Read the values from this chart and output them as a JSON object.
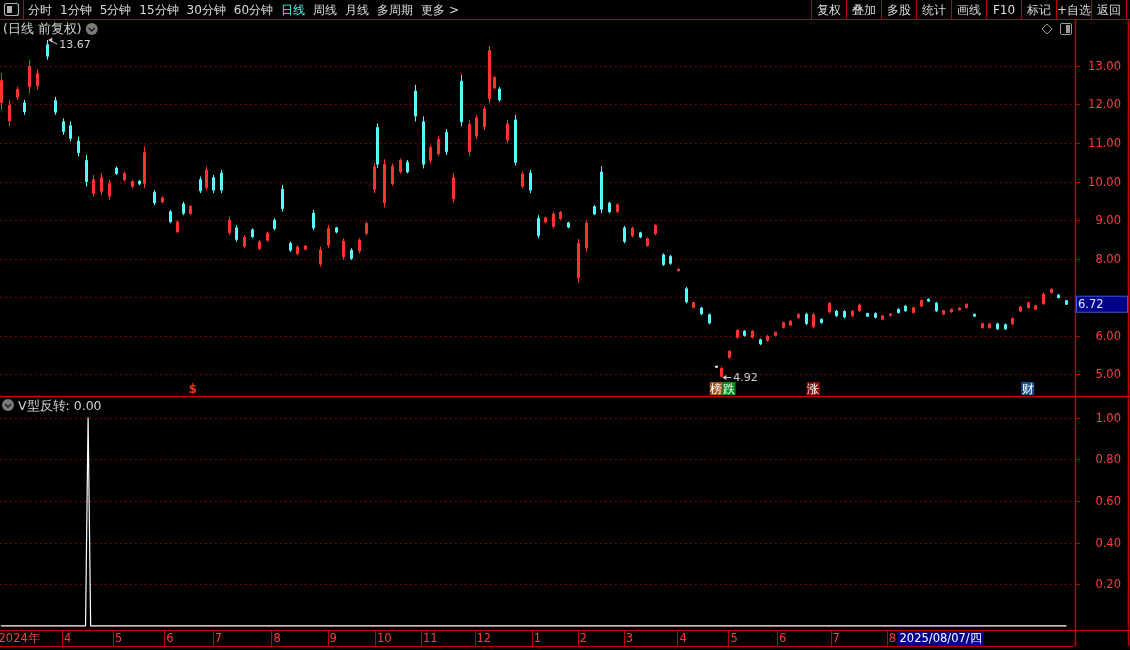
{
  "chart_data": [
    {
      "type": "candlestick",
      "title": "(日线 前复权)",
      "categories": [
        null,
        null,
        null,
        null,
        null,
        null,
        null,
        null,
        null,
        null,
        null,
        null,
        null,
        null,
        null,
        null,
        null,
        null,
        null,
        null,
        null,
        null,
        null,
        null,
        null,
        null,
        null,
        null,
        null,
        null,
        null,
        null,
        null,
        null,
        null,
        null,
        null,
        null,
        null,
        null,
        null,
        null,
        null,
        null,
        null,
        null,
        null,
        null,
        null,
        null,
        null,
        null,
        null,
        null,
        null,
        null,
        null,
        null,
        null,
        null,
        null,
        null,
        null,
        null,
        null,
        null,
        null,
        null,
        null,
        null,
        null,
        null,
        null,
        null,
        null,
        null,
        null,
        null,
        null,
        null,
        null,
        null,
        null,
        null,
        null,
        null,
        null,
        null,
        null,
        null,
        null,
        null,
        null,
        null,
        null,
        null,
        null,
        null,
        null,
        null,
        null,
        null,
        null,
        null,
        null,
        null,
        null,
        null,
        null,
        null,
        null,
        null,
        null,
        null,
        null,
        null,
        null,
        null,
        null,
        null,
        null,
        null,
        null,
        null,
        null,
        null,
        null,
        null,
        null,
        null,
        null,
        null,
        null,
        null,
        null,
        null,
        null,
        null,
        null,
        null,
        null,
        null,
        null,
        null,
        null,
        null,
        null,
        null,
        null,
        null,
        null,
        null,
        null,
        null,
        null,
        null,
        null,
        null,
        null,
        null,
        null,
        null,
        null,
        null,
        null,
        null,
        null,
        null,
        null,
        null,
        null,
        null,
        null,
        null,
        null,
        null,
        null,
        null,
        null,
        null,
        null,
        null,
        null,
        null,
        null,
        null,
        null,
        null,
        null,
        null,
        null,
        null,
        null,
        null,
        null,
        null,
        null,
        null,
        null,
        null,
        null,
        null,
        null,
        null,
        null,
        null,
        null,
        null,
        null,
        null,
        null,
        null,
        null,
        null,
        null,
        null,
        null,
        null,
        null,
        null,
        null,
        null,
        null,
        null,
        null,
        null,
        null,
        null,
        null,
        null,
        null,
        null,
        null,
        null,
        null,
        null,
        null,
        null,
        null,
        null,
        null,
        null,
        null,
        null,
        null,
        null,
        null,
        null,
        null,
        null,
        null,
        null,
        null,
        null,
        null,
        null,
        null,
        null,
        null,
        null,
        null,
        null,
        null,
        null,
        null,
        null,
        null,
        null,
        null,
        null,
        null,
        null,
        null,
        null,
        null,
        null,
        null,
        null,
        null,
        null,
        null,
        null,
        null,
        null,
        null,
        null,
        null,
        null,
        null,
        null,
        null,
        null,
        null,
        null,
        null,
        null,
        null,
        null,
        null,
        null,
        null,
        null,
        null,
        null,
        null,
        null,
        null,
        null,
        null,
        null,
        null,
        null,
        null,
        null,
        null,
        null,
        null,
        null,
        null,
        null,
        null,
        null,
        null,
        null,
        null,
        null,
        null,
        null,
        null,
        null,
        null,
        null,
        null,
        null,
        null,
        null,
        null,
        null,
        null,
        null,
        null,
        null,
        null,
        null,
        null,
        null,
        null,
        null,
        null,
        null,
        null,
        null,
        null,
        null,
        null,
        null,
        null,
        null,
        null,
        null,
        null,
        null,
        null,
        null,
        null,
        null,
        null,
        null,
        null,
        null,
        null,
        null,
        null,
        null,
        null,
        null,
        null,
        null,
        null,
        null,
        null,
        null,
        null,
        null,
        null,
        null,
        null,
        null,
        null,
        null,
        null,
        null,
        null,
        null,
        null,
        null,
        null,
        null,
        null,
        null,
        null,
        null,
        null,
        null,
        null,
        null,
        null,
        null,
        null,
        null,
        null,
        null,
        null,
        null,
        null,
        null,
        null,
        null,
        null,
        null,
        null
      ],
      "ohlc": [
        [
          12.05,
          12.81,
          11.86,
          12.62
        ],
        null,
        null,
        [
          11.57,
          12.12,
          11.43,
          11.98
        ],
        null,
        null,
        [
          12.19,
          12.46,
          12.12,
          12.39
        ],
        null,
        null,
        [
          12.04,
          12.12,
          11.73,
          11.81
        ],
        null,
        [
          12.46,
          13.16,
          12.29,
          12.99
        ],
        null,
        null,
        [
          12.48,
          12.9,
          12.38,
          12.8
        ],
        null,
        null,
        null,
        [
          13.55,
          13.67,
          13.16,
          13.25
        ],
        null,
        null,
        [
          12.1,
          12.2,
          11.73,
          11.8
        ],
        null,
        null,
        [
          11.55,
          11.64,
          11.21,
          11.3
        ],
        null,
        null,
        [
          11.45,
          11.56,
          11.04,
          11.12
        ],
        null,
        null,
        [
          11.05,
          11.17,
          10.65,
          10.75
        ],
        null,
        null,
        [
          10.55,
          10.69,
          9.87,
          10.0
        ],
        null,
        null,
        [
          9.7,
          10.17,
          9.61,
          10.05
        ],
        null,
        null,
        [
          9.75,
          10.21,
          9.65,
          10.1
        ],
        null,
        null,
        [
          9.62,
          10.04,
          9.52,
          9.95
        ],
        null,
        null,
        [
          10.35,
          10.39,
          10.17,
          10.21
        ],
        null,
        null,
        [
          10.05,
          10.26,
          10.0,
          10.21
        ],
        null,
        null,
        [
          9.87,
          10.04,
          9.83,
          10.0
        ],
        null,
        null,
        [
          10.01,
          10.04,
          9.91,
          9.94
        ],
        null,
        [
          9.95,
          10.91,
          9.83,
          10.75
        ],
        null,
        null,
        null,
        [
          9.72,
          9.78,
          9.39,
          9.45
        ],
        null,
        null,
        [
          9.47,
          9.61,
          9.44,
          9.58
        ],
        null,
        null,
        [
          9.22,
          9.26,
          8.92,
          8.96
        ],
        null,
        null,
        [
          8.7,
          9.0,
          8.66,
          8.95
        ],
        null,
        [
          9.42,
          9.48,
          9.13,
          9.18
        ],
        null,
        null,
        [
          9.17,
          9.39,
          9.13,
          9.35
        ],
        null,
        null,
        null,
        [
          10.05,
          10.13,
          9.7,
          9.76
        ],
        null,
        [
          9.85,
          10.39,
          9.78,
          10.3
        ],
        null,
        null,
        [
          10.1,
          10.17,
          9.7,
          9.78
        ],
        null,
        null,
        [
          10.22,
          10.3,
          9.7,
          9.78
        ],
        null,
        null,
        [
          8.68,
          9.09,
          8.61,
          9.0
        ],
        null,
        null,
        [
          8.8,
          8.87,
          8.44,
          8.5
        ],
        null,
        null,
        [
          8.32,
          8.61,
          8.27,
          8.55
        ],
        null,
        null,
        [
          8.75,
          8.79,
          8.53,
          8.57
        ],
        null,
        null,
        [
          8.26,
          8.48,
          8.22,
          8.44
        ],
        null,
        null,
        [
          8.48,
          8.7,
          8.44,
          8.66
        ],
        null,
        null,
        [
          9.0,
          9.05,
          8.74,
          8.78
        ],
        null,
        null,
        [
          9.8,
          9.91,
          9.22,
          9.3
        ],
        null,
        null,
        [
          8.4,
          8.44,
          8.18,
          8.22
        ],
        null,
        null,
        [
          8.13,
          8.35,
          8.09,
          8.3
        ],
        null,
        null,
        [
          8.24,
          8.35,
          8.22,
          8.33
        ],
        null,
        null,
        [
          9.18,
          9.26,
          8.74,
          8.8
        ],
        null,
        null,
        [
          7.86,
          8.31,
          7.79,
          8.22
        ],
        null,
        null,
        [
          8.35,
          8.87,
          8.27,
          8.78
        ],
        null,
        null,
        [
          8.8,
          8.83,
          8.66,
          8.69
        ],
        null,
        null,
        [
          8.05,
          8.53,
          7.97,
          8.45
        ],
        null,
        null,
        [
          8.22,
          8.27,
          7.97,
          8.01
        ],
        null,
        null,
        [
          8.2,
          8.53,
          8.14,
          8.48
        ],
        null,
        null,
        [
          8.66,
          8.96,
          8.61,
          8.91
        ],
        null,
        null,
        [
          9.8,
          10.47,
          9.7,
          10.38
        ],
        [
          11.4,
          11.51,
          10.35,
          10.45
        ],
        null,
        null,
        [
          9.45,
          10.58,
          9.33,
          10.45
        ],
        null,
        null,
        [
          9.95,
          10.47,
          9.89,
          10.4
        ],
        null,
        null,
        [
          10.26,
          10.6,
          10.21,
          10.55
        ],
        null,
        null,
        [
          10.5,
          10.56,
          10.21,
          10.25
        ],
        null,
        null,
        [
          12.35,
          12.51,
          11.56,
          11.7
        ],
        null,
        null,
        [
          11.55,
          11.69,
          10.34,
          10.45
        ],
        null,
        null,
        [
          10.55,
          10.95,
          10.47,
          10.88
        ],
        null,
        null,
        [
          10.72,
          11.18,
          10.66,
          11.1
        ],
        null,
        null,
        [
          11.28,
          11.36,
          10.69,
          10.78
        ],
        null,
        null,
        [
          9.55,
          10.21,
          9.46,
          10.1
        ],
        null,
        null,
        [
          12.6,
          12.77,
          11.43,
          11.55
        ],
        null,
        null,
        [
          10.78,
          11.6,
          10.66,
          11.48
        ],
        null,
        null,
        [
          11.18,
          11.73,
          11.1,
          11.65
        ],
        null,
        null,
        [
          11.42,
          11.96,
          11.34,
          11.88
        ],
        null,
        [
          12.15,
          13.52,
          12.03,
          13.4
        ],
        null,
        [
          12.43,
          12.74,
          12.39,
          12.7
        ],
        null,
        [
          12.4,
          12.45,
          12.07,
          12.12
        ],
        null,
        null,
        [
          11.08,
          11.6,
          10.99,
          11.5
        ],
        null,
        null,
        [
          11.6,
          11.73,
          10.41,
          10.5
        ],
        null,
        null,
        [
          9.88,
          10.26,
          9.83,
          10.2
        ],
        null,
        null,
        [
          10.22,
          10.3,
          9.7,
          9.78
        ],
        null,
        null,
        [
          9.05,
          9.13,
          8.53,
          8.6
        ],
        null,
        null,
        [
          8.95,
          9.09,
          8.92,
          9.06
        ],
        null,
        null,
        [
          8.84,
          9.22,
          8.79,
          9.16
        ],
        null,
        null,
        [
          9.04,
          9.24,
          9.0,
          9.2
        ],
        null,
        null,
        [
          8.93,
          8.96,
          8.79,
          8.82
        ],
        null,
        null,
        null,
        [
          7.5,
          8.51,
          7.38,
          8.4
        ],
        null,
        null,
        [
          8.28,
          9.0,
          8.18,
          8.92
        ],
        null,
        null,
        [
          9.35,
          9.39,
          9.13,
          9.16
        ],
        null,
        null,
        [
          10.25,
          10.4,
          9.18,
          9.28
        ],
        null,
        null,
        [
          9.44,
          9.48,
          9.18,
          9.22
        ],
        null,
        null,
        [
          9.22,
          9.44,
          9.18,
          9.4
        ],
        null,
        null,
        [
          8.8,
          8.85,
          8.4,
          8.45
        ],
        null,
        null,
        [
          8.59,
          8.83,
          8.55,
          8.79
        ],
        null,
        null,
        [
          8.67,
          8.7,
          8.53,
          8.56
        ],
        null,
        null,
        [
          8.34,
          8.55,
          8.31,
          8.52
        ],
        null,
        null,
        [
          8.65,
          8.9,
          8.61,
          8.86
        ],
        null,
        null,
        [
          8.1,
          8.14,
          7.81,
          7.85
        ],
        null,
        null,
        [
          8.06,
          8.1,
          7.84,
          7.88
        ],
        null,
        null,
        [
          7.69,
          7.75,
          7.67,
          7.73
        ],
        null,
        null,
        [
          7.22,
          7.27,
          6.84,
          6.88
        ],
        null,
        null,
        [
          6.74,
          6.88,
          6.71,
          6.86
        ],
        null,
        null,
        [
          6.72,
          6.75,
          6.54,
          6.57
        ],
        null,
        null,
        [
          6.55,
          6.58,
          6.3,
          6.33
        ],
        null,
        null,
        [
          5.2,
          5.2,
          5.2,
          5.2
        ],
        null,
        [
          4.95,
          5.2,
          4.92,
          5.15
        ],
        null,
        null,
        [
          5.44,
          5.63,
          5.41,
          5.6
        ],
        null,
        null,
        [
          5.96,
          6.17,
          5.93,
          6.14
        ],
        null,
        null,
        [
          6.12,
          6.15,
          5.98,
          6.01
        ],
        null,
        null,
        [
          5.96,
          6.15,
          5.93,
          6.12
        ],
        null,
        null,
        [
          5.9,
          5.93,
          5.76,
          5.79
        ],
        null,
        null,
        [
          5.88,
          6.02,
          5.85,
          5.99
        ],
        null,
        null,
        [
          6.01,
          6.11,
          5.99,
          6.09
        ],
        null,
        null,
        [
          6.22,
          6.37,
          6.19,
          6.34
        ],
        null,
        null,
        [
          6.28,
          6.41,
          6.25,
          6.38
        ],
        null,
        null,
        [
          6.47,
          6.58,
          6.45,
          6.56
        ],
        null,
        null,
        [
          6.56,
          6.6,
          6.28,
          6.32
        ],
        null,
        null,
        [
          6.24,
          6.6,
          6.19,
          6.55
        ],
        null,
        null,
        [
          6.43,
          6.45,
          6.32,
          6.34
        ],
        null,
        null,
        [
          6.62,
          6.88,
          6.58,
          6.84
        ],
        null,
        null,
        [
          6.64,
          6.67,
          6.49,
          6.52
        ],
        null,
        null,
        [
          6.63,
          6.67,
          6.45,
          6.49
        ],
        null,
        null,
        [
          6.52,
          6.67,
          6.49,
          6.64
        ],
        null,
        null,
        [
          6.65,
          6.84,
          6.62,
          6.8
        ],
        null,
        null,
        [
          6.58,
          6.6,
          6.49,
          6.51
        ],
        null,
        null,
        [
          6.58,
          6.61,
          6.45,
          6.48
        ],
        null,
        null,
        [
          6.43,
          6.54,
          6.41,
          6.52
        ],
        null,
        null,
        [
          6.52,
          6.58,
          6.51,
          6.57
        ],
        null,
        null,
        [
          6.69,
          6.71,
          6.58,
          6.6
        ],
        null,
        null,
        [
          6.77,
          6.8,
          6.62,
          6.65
        ],
        null,
        null,
        [
          6.6,
          6.75,
          6.58,
          6.73
        ],
        null,
        null,
        [
          6.77,
          6.94,
          6.75,
          6.92
        ],
        null,
        null,
        [
          6.95,
          6.97,
          6.88,
          6.9
        ],
        null,
        null,
        [
          6.85,
          6.88,
          6.62,
          6.65
        ],
        null,
        null,
        [
          6.56,
          6.67,
          6.54,
          6.65
        ],
        null,
        null,
        [
          6.62,
          6.71,
          6.6,
          6.69
        ],
        null,
        null,
        [
          6.67,
          6.74,
          6.65,
          6.72
        ],
        null,
        null,
        [
          6.73,
          6.84,
          6.71,
          6.82
        ],
        null,
        null,
        [
          6.56,
          6.58,
          6.49,
          6.51
        ],
        null,
        null,
        [
          6.21,
          6.34,
          6.19,
          6.32
        ],
        null,
        null,
        [
          6.21,
          6.34,
          6.19,
          6.31
        ],
        null,
        null,
        [
          6.31,
          6.34,
          6.15,
          6.18
        ],
        null,
        null,
        [
          6.29,
          6.32,
          6.15,
          6.18
        ],
        null,
        null,
        [
          6.31,
          6.48,
          6.28,
          6.45
        ],
        null,
        null,
        [
          6.64,
          6.77,
          6.62,
          6.75
        ],
        null,
        null,
        [
          6.73,
          6.88,
          6.71,
          6.86
        ],
        null,
        null,
        [
          6.69,
          6.8,
          6.67,
          6.78
        ],
        null,
        null,
        [
          6.84,
          7.12,
          6.8,
          7.08
        ],
        null,
        null,
        [
          7.12,
          7.23,
          7.1,
          7.21
        ],
        null,
        null,
        [
          7.06,
          7.08,
          6.97,
          6.99
        ],
        null,
        null,
        [
          6.91,
          6.93,
          6.8,
          6.82
        ],
        null,
        null,
        null
      ],
      "ylim": [
        4.44,
        14.19
      ],
      "yticks": [
        {
          "value": 5,
          "label": "5.00"
        },
        {
          "value": 6,
          "label": "6.00"
        },
        {
          "value": 7,
          "label": null
        },
        {
          "value": 8,
          "label": "8.00"
        },
        {
          "value": 9,
          "label": "9.00"
        },
        {
          "value": 10,
          "label": "10.00"
        },
        {
          "value": 11,
          "label": "11.00"
        },
        {
          "value": 12,
          "label": "12.00"
        },
        {
          "value": 13,
          "label": "13.00"
        }
      ],
      "grid": "y",
      "tick_labels": "y",
      "annotations": [
        "13.67",
        "4.92",
        "6.72",
        "$",
        "榜",
        "跌",
        "涨",
        "财",
        "分时",
        "1分钟",
        "5分钟",
        "15分钟",
        "30分钟",
        "60分钟",
        "日线",
        "周线",
        "月线",
        "多周期",
        "更多 >",
        "复权",
        "叠加",
        "多股",
        "统计",
        "画线",
        "F10",
        "标记",
        "+自选",
        "返回"
      ]
    },
    {
      "type": "line",
      "title": "V型反转: 0.00",
      "categories": [
        null,
        null,
        null,
        null,
        null,
        null,
        null,
        "2024年",
        null,
        null,
        null,
        null,
        null,
        null,
        null,
        null,
        null,
        null,
        null,
        null,
        null,
        null,
        null,
        null,
        null,
        null,
        "4",
        null,
        null,
        null,
        null,
        null,
        null,
        null,
        null,
        null,
        null,
        null,
        null,
        null,
        null,
        null,
        null,
        null,
        null,
        null,
        "5",
        null,
        null,
        null,
        null,
        null,
        null,
        null,
        null,
        null,
        null,
        null,
        null,
        null,
        null,
        null,
        null,
        null,
        null,
        null,
        "6",
        null,
        null,
        null,
        null,
        null,
        null,
        null,
        null,
        null,
        null,
        null,
        null,
        null,
        null,
        null,
        null,
        null,
        null,
        "7",
        null,
        null,
        null,
        null,
        null,
        null,
        null,
        null,
        null,
        null,
        null,
        null,
        null,
        null,
        null,
        null,
        null,
        null,
        null,
        null,
        null,
        null,
        "8",
        null,
        null,
        null,
        null,
        null,
        null,
        null,
        null,
        null,
        null,
        null,
        null,
        null,
        null,
        null,
        null,
        null,
        null,
        null,
        null,
        null,
        "9",
        null,
        null,
        null,
        null,
        null,
        null,
        null,
        null,
        null,
        null,
        null,
        null,
        null,
        null,
        null,
        null,
        null,
        null,
        null,
        "10",
        null,
        null,
        null,
        null,
        null,
        null,
        null,
        null,
        null,
        null,
        null,
        null,
        null,
        null,
        null,
        null,
        null,
        "11",
        null,
        null,
        null,
        null,
        null,
        null,
        null,
        null,
        null,
        null,
        null,
        null,
        null,
        null,
        null,
        null,
        null,
        null,
        null,
        null,
        "12",
        null,
        null,
        null,
        null,
        null,
        null,
        null,
        null,
        null,
        null,
        null,
        null,
        null,
        null,
        null,
        null,
        null,
        null,
        null,
        null,
        "1",
        null,
        null,
        null,
        null,
        null,
        null,
        null,
        null,
        null,
        null,
        null,
        null,
        null,
        null,
        null,
        null,
        null,
        "2",
        null,
        null,
        null,
        null,
        null,
        null,
        null,
        null,
        null,
        null,
        null,
        null,
        null,
        null,
        null,
        null,
        null,
        "3",
        null,
        null,
        null,
        null,
        null,
        null,
        null,
        null,
        null,
        null,
        null,
        null,
        null,
        null,
        null,
        null,
        null,
        null,
        null,
        null,
        "4",
        null,
        null,
        null,
        null,
        null,
        null,
        null,
        null,
        null,
        null,
        null,
        null,
        null,
        null,
        null,
        null,
        null,
        null,
        null,
        "5",
        null,
        null,
        null,
        null,
        null,
        null,
        null,
        null,
        null,
        null,
        null,
        null,
        null,
        null,
        null,
        null,
        null,
        null,
        "6",
        null,
        null,
        null,
        null,
        null,
        null,
        null,
        null,
        null,
        null,
        null,
        null,
        null,
        null,
        null,
        null,
        null,
        null,
        null,
        null,
        "7",
        null,
        null,
        null,
        null,
        null,
        null,
        null,
        null,
        null,
        null,
        null,
        null,
        null,
        null,
        null,
        null,
        null,
        null,
        null,
        null,
        null,
        "8",
        null,
        null,
        null,
        null,
        null,
        null,
        null,
        null,
        null,
        null,
        null,
        null,
        null,
        null,
        null,
        null,
        null,
        null,
        null,
        null,
        null,
        null,
        null,
        null,
        null,
        null,
        null,
        null,
        null,
        null,
        null,
        null,
        null,
        null,
        null,
        null,
        null,
        null,
        null,
        null,
        null,
        null,
        null,
        null,
        null,
        null,
        null,
        null,
        null,
        null,
        null,
        null,
        null,
        null,
        null,
        null,
        null,
        null,
        null,
        null,
        null,
        null,
        null,
        null,
        null,
        null,
        null,
        null,
        null,
        null,
        null
      ],
      "values": [
        0,
        0,
        0,
        0,
        0,
        0,
        0,
        0,
        0,
        0,
        0,
        0,
        0,
        0,
        0,
        0,
        0,
        0,
        0,
        0,
        0,
        0,
        0,
        0,
        0,
        0,
        0,
        0,
        0,
        0,
        0,
        0,
        0,
        0,
        1,
        0,
        0,
        0,
        0,
        0,
        0,
        0,
        0,
        0,
        0,
        0,
        0,
        0,
        0,
        0,
        0,
        0,
        0,
        0,
        0,
        0,
        0,
        0,
        0,
        0,
        0,
        0,
        0,
        0,
        0,
        0,
        0,
        0,
        0,
        0,
        0,
        0,
        0,
        0,
        0,
        0,
        0,
        0,
        0,
        0,
        0,
        0,
        0,
        0,
        0,
        0,
        0,
        0,
        0,
        0,
        0,
        0,
        0,
        0,
        0,
        0,
        0,
        0,
        0,
        0,
        0,
        0,
        0,
        0,
        0,
        0,
        0,
        0,
        0,
        0,
        0,
        0,
        0,
        0,
        0,
        0,
        0,
        0,
        0,
        0,
        0,
        0,
        0,
        0,
        0,
        0,
        0,
        0,
        0,
        0,
        0,
        0,
        0,
        0,
        0,
        0,
        0,
        0,
        0,
        0,
        0,
        0,
        0,
        0,
        0,
        0,
        0,
        0,
        0,
        0,
        0,
        0,
        0,
        0,
        0,
        0,
        0,
        0,
        0,
        0,
        0,
        0,
        0,
        0,
        0,
        0,
        0,
        0,
        0,
        0,
        0,
        0,
        0,
        0,
        0,
        0,
        0,
        0,
        0,
        0,
        0,
        0,
        0,
        0,
        0,
        0,
        0,
        0,
        0,
        0,
        0,
        0,
        0,
        0,
        0,
        0,
        0,
        0,
        0,
        0,
        0,
        0,
        0,
        0,
        0,
        0,
        0,
        0,
        0,
        0,
        0,
        0,
        0,
        0,
        0,
        0,
        0,
        0,
        0,
        0,
        0,
        0,
        0,
        0,
        0,
        0,
        0,
        0,
        0,
        0,
        0,
        0,
        0,
        0,
        0,
        0,
        0,
        0,
        0,
        0,
        0,
        0,
        0,
        0,
        0,
        0,
        0,
        0,
        0,
        0,
        0,
        0,
        0,
        0,
        0,
        0,
        0,
        0,
        0,
        0,
        0,
        0,
        0,
        0,
        0,
        0,
        0,
        0,
        0,
        0,
        0,
        0,
        0,
        0,
        0,
        0,
        0,
        0,
        0,
        0,
        0,
        0,
        0,
        0,
        0,
        0,
        0,
        0,
        0,
        0,
        0,
        0,
        0,
        0,
        0,
        0,
        0,
        0,
        0,
        0,
        0,
        0,
        0,
        0,
        0,
        0,
        0,
        0,
        0,
        0,
        0,
        0,
        0,
        0,
        0,
        0,
        0,
        0,
        0,
        0,
        0,
        0,
        0,
        0,
        0,
        0,
        0,
        0,
        0,
        0,
        0,
        0,
        0,
        0,
        0,
        0,
        0,
        0,
        0,
        0,
        0,
        0,
        0,
        0,
        0,
        0,
        0,
        0,
        0,
        0,
        0,
        0,
        0,
        0,
        0,
        0,
        0,
        0,
        0,
        0,
        0,
        0,
        0,
        0,
        0,
        0,
        0,
        0,
        0,
        0,
        0,
        0,
        0,
        0,
        0,
        0,
        0,
        0,
        0,
        0,
        0,
        0,
        0,
        0,
        0,
        0,
        0,
        0,
        0,
        0,
        0,
        0,
        0,
        0,
        0,
        0,
        0,
        0,
        0,
        0,
        0,
        0,
        0,
        0,
        0,
        0,
        0,
        0,
        0,
        0,
        0,
        0,
        0,
        0,
        0,
        0,
        0,
        0,
        null,
        null,
        null
      ],
      "color": "#ffffff",
      "ylim": [
        -0.02,
        1.1
      ],
      "yticks": [
        {
          "value": 0.2,
          "label": "0.20"
        },
        {
          "value": 0.4,
          "label": "0.40"
        },
        {
          "value": 0.6,
          "label": "0.60"
        },
        {
          "value": 0.8,
          "label": "0.80"
        },
        {
          "value": 1,
          "label": "1.00"
        }
      ],
      "grid": "y",
      "annotations": [
        "2025/08/07/四"
      ]
    }
  ]
}
